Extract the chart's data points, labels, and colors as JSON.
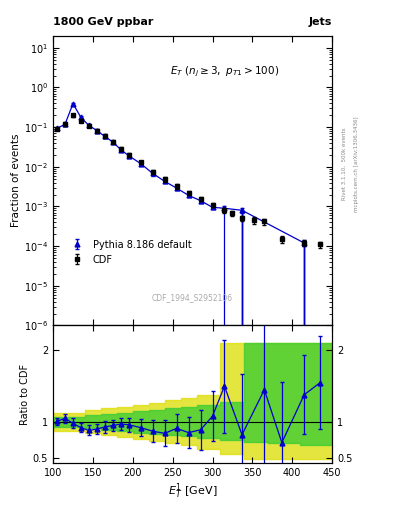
{
  "title_left": "1800 GeV ppbar",
  "title_right": "Jets",
  "watermark": "CDF_1994_S2952106",
  "ylabel_main": "Fraction of events",
  "ylabel_ratio": "Ratio to CDF",
  "xlabel": "$E_T^1$ [GeV]",
  "right_label": "Rivet 3.1.10,  500k events",
  "right_label2": "mcplots.cern.ch [arXiv:1306.3436]",
  "xlim": [
    100,
    450
  ],
  "ylim_main": [
    1e-06,
    20
  ],
  "ylim_ratio": [
    0.42,
    2.35
  ],
  "ratio_yticks": [
    0.5,
    1.0,
    2.0
  ],
  "cdf_x": [
    105,
    115,
    125,
    135,
    145,
    155,
    165,
    175,
    185,
    195,
    210,
    225,
    240,
    255,
    270,
    285,
    300,
    315,
    325,
    337,
    352,
    365,
    387,
    415,
    435
  ],
  "cdf_y": [
    0.092,
    0.12,
    0.2,
    0.145,
    0.108,
    0.082,
    0.06,
    0.043,
    0.028,
    0.02,
    0.013,
    0.0075,
    0.0048,
    0.0032,
    0.0022,
    0.00155,
    0.0011,
    0.00082,
    0.00068,
    0.0005,
    0.00045,
    0.00042,
    0.00015,
    0.00012,
    0.00011
  ],
  "cdf_yerr": [
    0.008,
    0.012,
    0.018,
    0.013,
    0.01,
    0.008,
    0.006,
    0.004,
    0.003,
    0.002,
    0.0014,
    0.0009,
    0.0006,
    0.0004,
    0.0003,
    0.0002,
    0.00015,
    0.00012,
    0.0001,
    8e-05,
    8e-05,
    7e-05,
    3e-05,
    2e-05,
    2e-05
  ],
  "pythia_x": [
    105,
    115,
    125,
    135,
    145,
    155,
    165,
    175,
    185,
    195,
    210,
    225,
    240,
    255,
    270,
    285,
    300,
    315,
    325,
    337,
    352,
    365,
    387,
    415,
    435
  ],
  "pythia_y": [
    0.093,
    0.118,
    0.39,
    0.175,
    0.11,
    0.082,
    0.058,
    0.042,
    0.027,
    0.019,
    0.012,
    0.0068,
    0.0043,
    0.0029,
    0.0019,
    0.0014,
    0.00095,
    0.0009,
    1e-07,
    0.0008,
    1e-07,
    1e-07,
    1e-07,
    0.00012,
    1e-07
  ],
  "pythia_yerr": [
    0.004,
    0.009,
    0.025,
    0.012,
    0.009,
    0.007,
    0.005,
    0.003,
    0.002,
    0.002,
    0.0012,
    0.0008,
    0.0005,
    0.0003,
    0.0002,
    0.00015,
    0.0001,
    0.00012,
    1e-08,
    0.00012,
    1e-08,
    1e-08,
    1e-08,
    2e-05,
    1e-08
  ],
  "ratio_x": [
    105,
    115,
    125,
    135,
    145,
    155,
    165,
    175,
    185,
    195,
    210,
    225,
    240,
    255,
    270,
    285,
    300,
    315,
    337,
    365,
    387,
    415,
    435
  ],
  "ratio_y": [
    1.01,
    1.05,
    0.98,
    0.92,
    0.88,
    0.9,
    0.93,
    0.95,
    0.97,
    0.96,
    0.92,
    0.87,
    0.84,
    0.91,
    0.85,
    0.89,
    1.08,
    1.5,
    0.82,
    1.45,
    0.71,
    1.38,
    1.55
  ],
  "ratio_yerr": [
    0.05,
    0.06,
    0.07,
    0.06,
    0.07,
    0.07,
    0.08,
    0.08,
    0.09,
    0.1,
    0.12,
    0.15,
    0.18,
    0.2,
    0.22,
    0.28,
    0.35,
    0.65,
    0.85,
    1.5,
    0.85,
    0.55,
    0.65
  ],
  "green_band_x": [
    100,
    120,
    140,
    160,
    180,
    200,
    220,
    240,
    260,
    280,
    310,
    340,
    370,
    410,
    450
  ],
  "green_band_lo": [
    0.93,
    0.93,
    0.91,
    0.89,
    0.87,
    0.85,
    0.83,
    0.81,
    0.8,
    0.78,
    0.75,
    0.72,
    0.7,
    0.68,
    0.68
  ],
  "green_band_hi": [
    1.07,
    1.07,
    1.09,
    1.11,
    1.13,
    1.15,
    1.17,
    1.19,
    1.21,
    1.23,
    1.28,
    2.1,
    2.1,
    2.1,
    2.1
  ],
  "yellow_band_x": [
    100,
    120,
    140,
    160,
    180,
    200,
    220,
    240,
    260,
    280,
    310,
    340,
    370,
    410,
    450
  ],
  "yellow_band_lo": [
    0.87,
    0.87,
    0.84,
    0.81,
    0.79,
    0.76,
    0.73,
    0.7,
    0.67,
    0.62,
    0.55,
    0.48,
    0.48,
    0.48,
    0.48
  ],
  "yellow_band_hi": [
    1.13,
    1.13,
    1.16,
    1.19,
    1.21,
    1.24,
    1.27,
    1.3,
    1.33,
    1.38,
    2.1,
    2.1,
    2.1,
    2.1,
    2.1
  ],
  "bg_color": "#ffffff",
  "cdf_color": "#000000",
  "pythia_color": "#0000cc",
  "green_color": "#33cc33",
  "yellow_color": "#dddd00",
  "green_alpha": 0.75,
  "yellow_alpha": 0.75
}
